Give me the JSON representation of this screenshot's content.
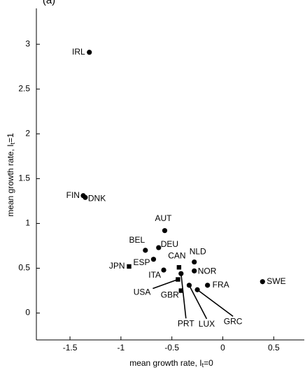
{
  "chart_data": {
    "type": "scatter",
    "title": "(a)",
    "xlabel": {
      "text": "mean growth rate, I",
      "sub": "t",
      "after": "=0"
    },
    "ylabel": {
      "text": "mean growth rate, I",
      "sub": "t",
      "after": "=1"
    },
    "xlim": [
      -1.83,
      0.8
    ],
    "ylim": [
      -0.3,
      3.4
    ],
    "xticks": [
      -1.5,
      -1,
      -0.5,
      0,
      0.5
    ],
    "yticks": [
      0,
      0.5,
      1,
      1.5,
      2,
      2.5,
      3
    ],
    "color": "#000000",
    "points": [
      {
        "label": "IRL",
        "x": -1.31,
        "y": 2.91,
        "marker": "circle"
      },
      {
        "label": "FIN",
        "x": -1.37,
        "y": 1.31,
        "marker": "circle"
      },
      {
        "label": "DNK",
        "x": -1.35,
        "y": 1.29,
        "marker": "circle"
      },
      {
        "label": "AUT",
        "x": -0.57,
        "y": 0.92,
        "marker": "circle"
      },
      {
        "label": "BEL",
        "x": -0.76,
        "y": 0.7,
        "marker": "circle"
      },
      {
        "label": "DEU",
        "x": -0.63,
        "y": 0.73,
        "marker": "circle"
      },
      {
        "label": "ESP",
        "x": -0.68,
        "y": 0.6,
        "marker": "circle"
      },
      {
        "label": "JPN",
        "x": -0.92,
        "y": 0.52,
        "marker": "square"
      },
      {
        "label": "ITA",
        "x": -0.58,
        "y": 0.48,
        "marker": "circle"
      },
      {
        "label": "CAN",
        "x": -0.43,
        "y": 0.51,
        "marker": "square"
      },
      {
        "label": "NLD",
        "x": -0.28,
        "y": 0.57,
        "marker": "circle"
      },
      {
        "label": "NOR",
        "x": -0.28,
        "y": 0.47,
        "marker": "circle"
      },
      {
        "label": "USA",
        "x": -0.44,
        "y": 0.375,
        "marker": "square"
      },
      {
        "label": "GBR",
        "x": -0.41,
        "y": 0.25,
        "marker": "square"
      },
      {
        "label": "FRA",
        "x": -0.15,
        "y": 0.31,
        "marker": "circle"
      },
      {
        "label": "SWE",
        "x": 0.39,
        "y": 0.35,
        "marker": "circle"
      },
      {
        "label": "PRT",
        "x": -0.41,
        "y": 0.44,
        "marker": "circle"
      },
      {
        "label": "LUX",
        "x": -0.33,
        "y": 0.31,
        "marker": "circle"
      },
      {
        "label": "GRC",
        "x": -0.25,
        "y": 0.26,
        "marker": "circle"
      }
    ]
  }
}
